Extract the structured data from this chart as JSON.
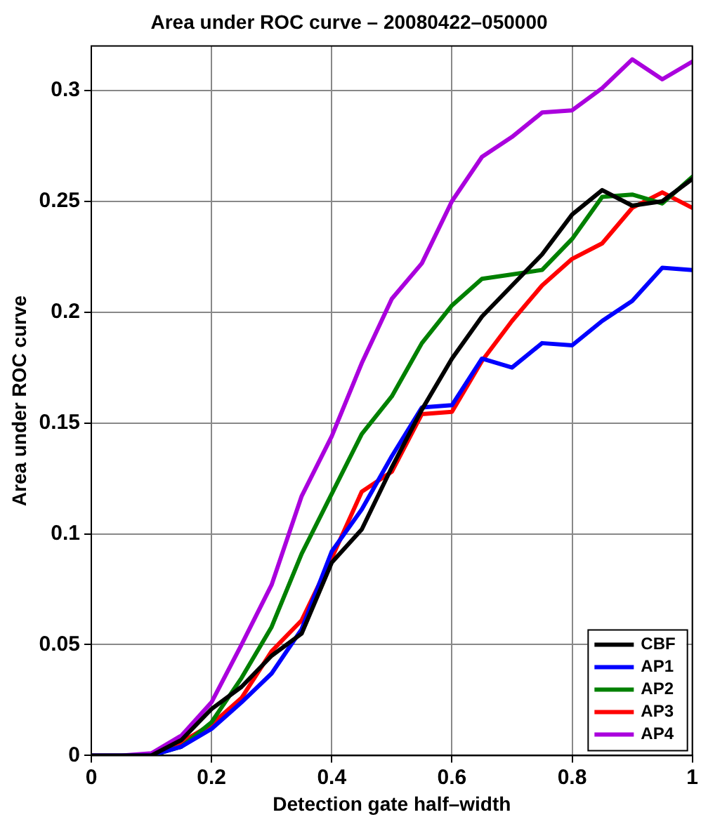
{
  "chart_data": {
    "type": "line",
    "title": "Area under ROC curve – 20080422–050000",
    "xlabel": "Detection gate half–width",
    "ylabel": "Area under ROC curve",
    "x": [
      0,
      0.05,
      0.1,
      0.15,
      0.2,
      0.25,
      0.3,
      0.35,
      0.4,
      0.45,
      0.5,
      0.55,
      0.6,
      0.65,
      0.7,
      0.75,
      0.8,
      0.85,
      0.9,
      0.95,
      1
    ],
    "series": [
      {
        "name": "CBF",
        "color": "#000000",
        "values": [
          0,
          0,
          0,
          0.007,
          0.021,
          0.031,
          0.045,
          0.055,
          0.087,
          0.102,
          0.13,
          0.156,
          0.179,
          0.198,
          0.212,
          0.226,
          0.244,
          0.255,
          0.248,
          0.25,
          0.26
        ]
      },
      {
        "name": "AP1",
        "color": "#0000ff",
        "values": [
          0,
          0,
          0,
          0.004,
          0.012,
          0.024,
          0.037,
          0.057,
          0.092,
          0.111,
          0.135,
          0.157,
          0.158,
          0.179,
          0.175,
          0.186,
          0.185,
          0.196,
          0.205,
          0.22,
          0.219
        ]
      },
      {
        "name": "AP2",
        "color": "#008000",
        "values": [
          null,
          null,
          0,
          0.004,
          0.015,
          0.035,
          0.058,
          0.091,
          0.118,
          0.145,
          0.162,
          0.186,
          0.203,
          0.215,
          0.217,
          0.219,
          0.233,
          0.252,
          0.253,
          0.249,
          0.261
        ]
      },
      {
        "name": "AP3",
        "color": "#ff0000",
        "values": [
          null,
          null,
          0,
          0.006,
          0.014,
          0.026,
          0.047,
          0.061,
          0.089,
          0.119,
          0.128,
          0.154,
          0.155,
          0.178,
          0.196,
          0.212,
          0.224,
          0.231,
          0.247,
          0.254,
          0.247
        ]
      },
      {
        "name": "AP4",
        "color": "#aa00dd",
        "values": [
          0,
          0,
          0.001,
          0.009,
          0.024,
          0.05,
          0.077,
          0.117,
          0.144,
          0.177,
          0.206,
          0.222,
          0.25,
          0.27,
          0.279,
          0.29,
          0.291,
          0.301,
          0.314,
          0.305,
          0.313
        ]
      }
    ],
    "xlim": [
      0,
      1
    ],
    "xticks": [
      0,
      0.2,
      0.4,
      0.6,
      0.8,
      1
    ],
    "ylim": [
      0,
      0.32
    ],
    "yticks": [
      0,
      0.05,
      0.1,
      0.15,
      0.2,
      0.25,
      0.3
    ],
    "grid": true,
    "legend": "bottom right",
    "marker": "none",
    "line_style": "solid"
  }
}
